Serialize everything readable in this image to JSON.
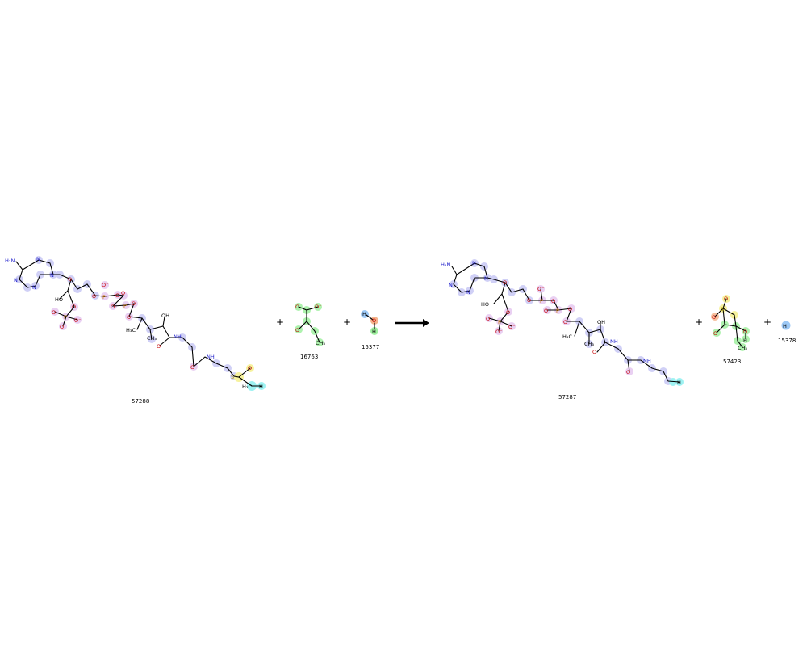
{
  "reaction": {
    "reactants": [
      {
        "id": "57288"
      },
      {
        "id": "16763"
      },
      {
        "id": "15377"
      }
    ],
    "products": [
      {
        "id": "57287"
      },
      {
        "id": "57423"
      },
      {
        "id": "15378"
      }
    ],
    "operator": "+",
    "arrow": "reaction-arrow"
  },
  "atoms": {
    "nh2": "H₂N",
    "n": "N",
    "o": "O",
    "p": "P",
    "s": "S",
    "h": "H",
    "oh": "OH",
    "ho": "HO",
    "nh": "NH",
    "ch3": "CH₃",
    "h3c": "H₃C",
    "h2c": "H₂C",
    "ominus": "O⁻",
    "hplus": "H⁺"
  },
  "colors": {
    "adenine": "#c8c8f5",
    "phosphate": "#e6c8f0",
    "thioester": "#f5f08c",
    "terminal_h": "#8ef0f0",
    "pyruvate_group": "#a0f0a0",
    "water_o": "#f5b48c",
    "water_h": "#9cc8f5",
    "hetero_o": "#c80000",
    "hetero_n": "#1e1ecc",
    "hetero_p": "#c87800",
    "hetero_s": "#b4a000"
  }
}
